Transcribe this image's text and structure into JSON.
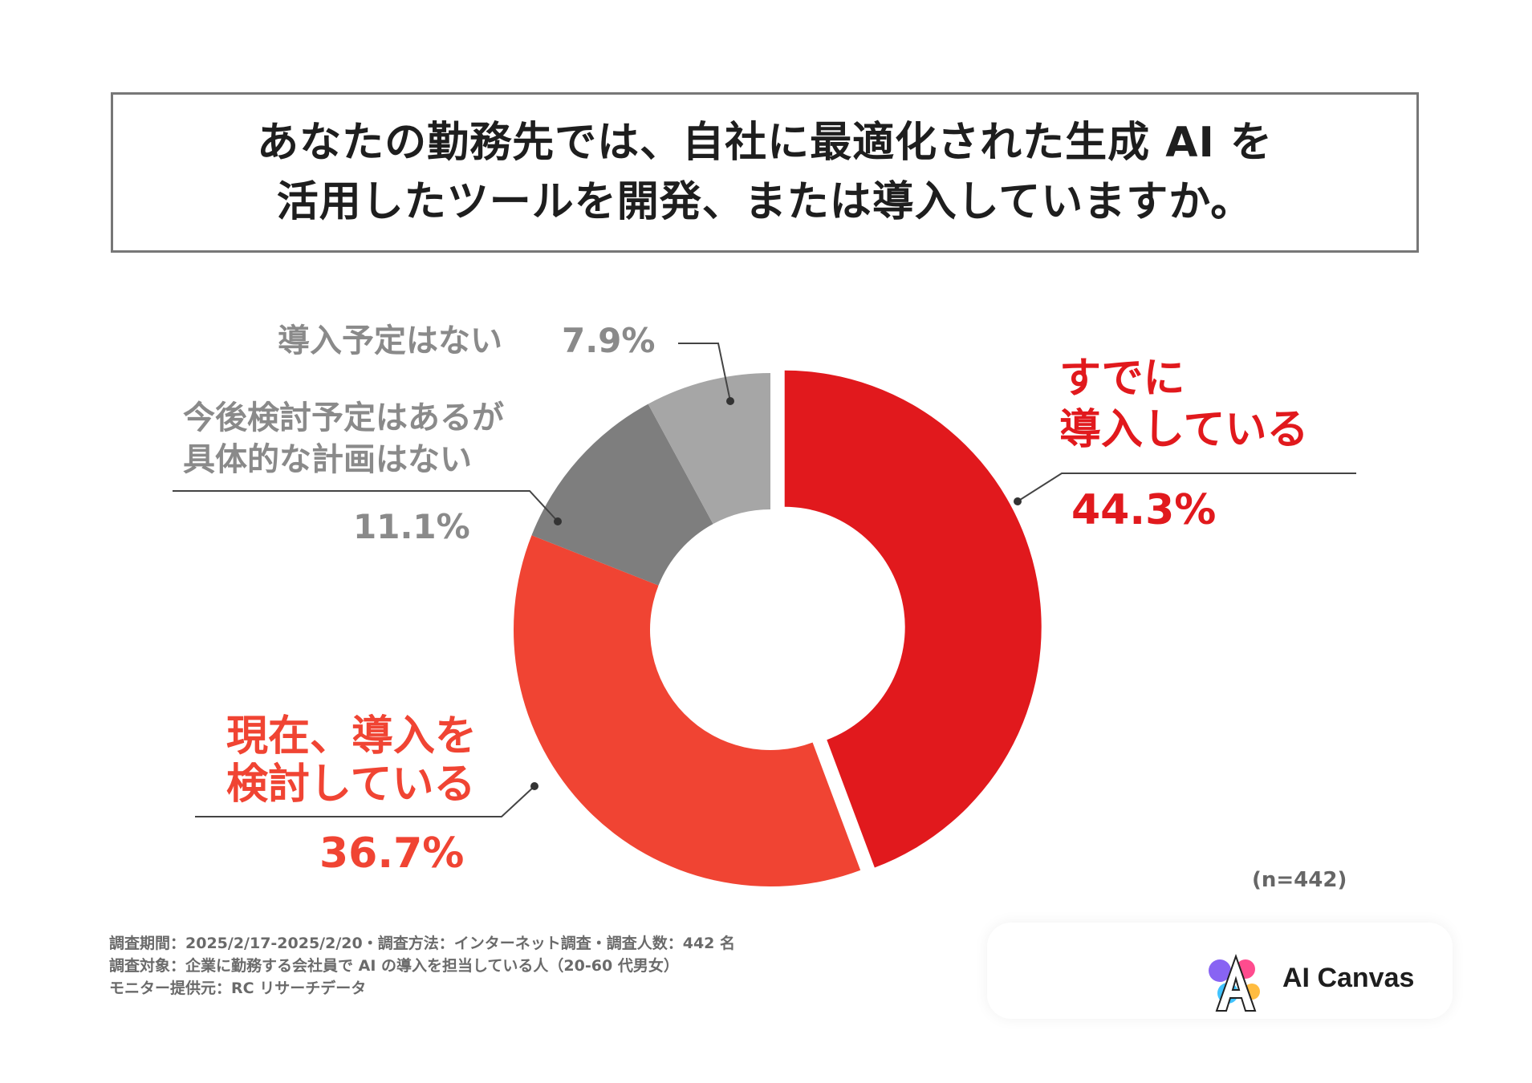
{
  "title": {
    "line1": "あなたの勤務先では、自社に最適化された生成 AI を",
    "line2": "活用したツールを開発、または導入していますか。"
  },
  "chart_data": {
    "type": "pie",
    "donut": true,
    "start_angle_deg": 0,
    "direction": "clockwise",
    "slices": [
      {
        "label_line1": "すでに",
        "label_line2": "導入している",
        "value": 44.3,
        "display": "44.3%",
        "color": "#e1191d"
      },
      {
        "label_line1": "現在、導入を",
        "label_line2": "検討している",
        "value": 36.7,
        "display": "36.7%",
        "color": "#f04433"
      },
      {
        "label_line1": "今後検討予定はあるが",
        "label_line2": "具体的な計画はない",
        "value": 11.1,
        "display": "11.1%",
        "color": "#7e7e7e"
      },
      {
        "label_line1": "導入予定はない",
        "label_line2": "",
        "value": 7.9,
        "display": "7.9%",
        "color": "#a6a6a6"
      }
    ],
    "legend": "none"
  },
  "sample_size": "(n=442)",
  "footnotes": [
    "調査期間：2025/2/17-2025/2/20・調査方法：インターネット調査・調査人数：442 名",
    "調査対象：企業に勤務する会社員で AI の導入を担当している人（20-60 代男女）",
    "モニター提供元：RC リサーチデータ"
  ],
  "logo": {
    "name": "AI Canvas",
    "icon": "splash-a-logo-icon"
  }
}
